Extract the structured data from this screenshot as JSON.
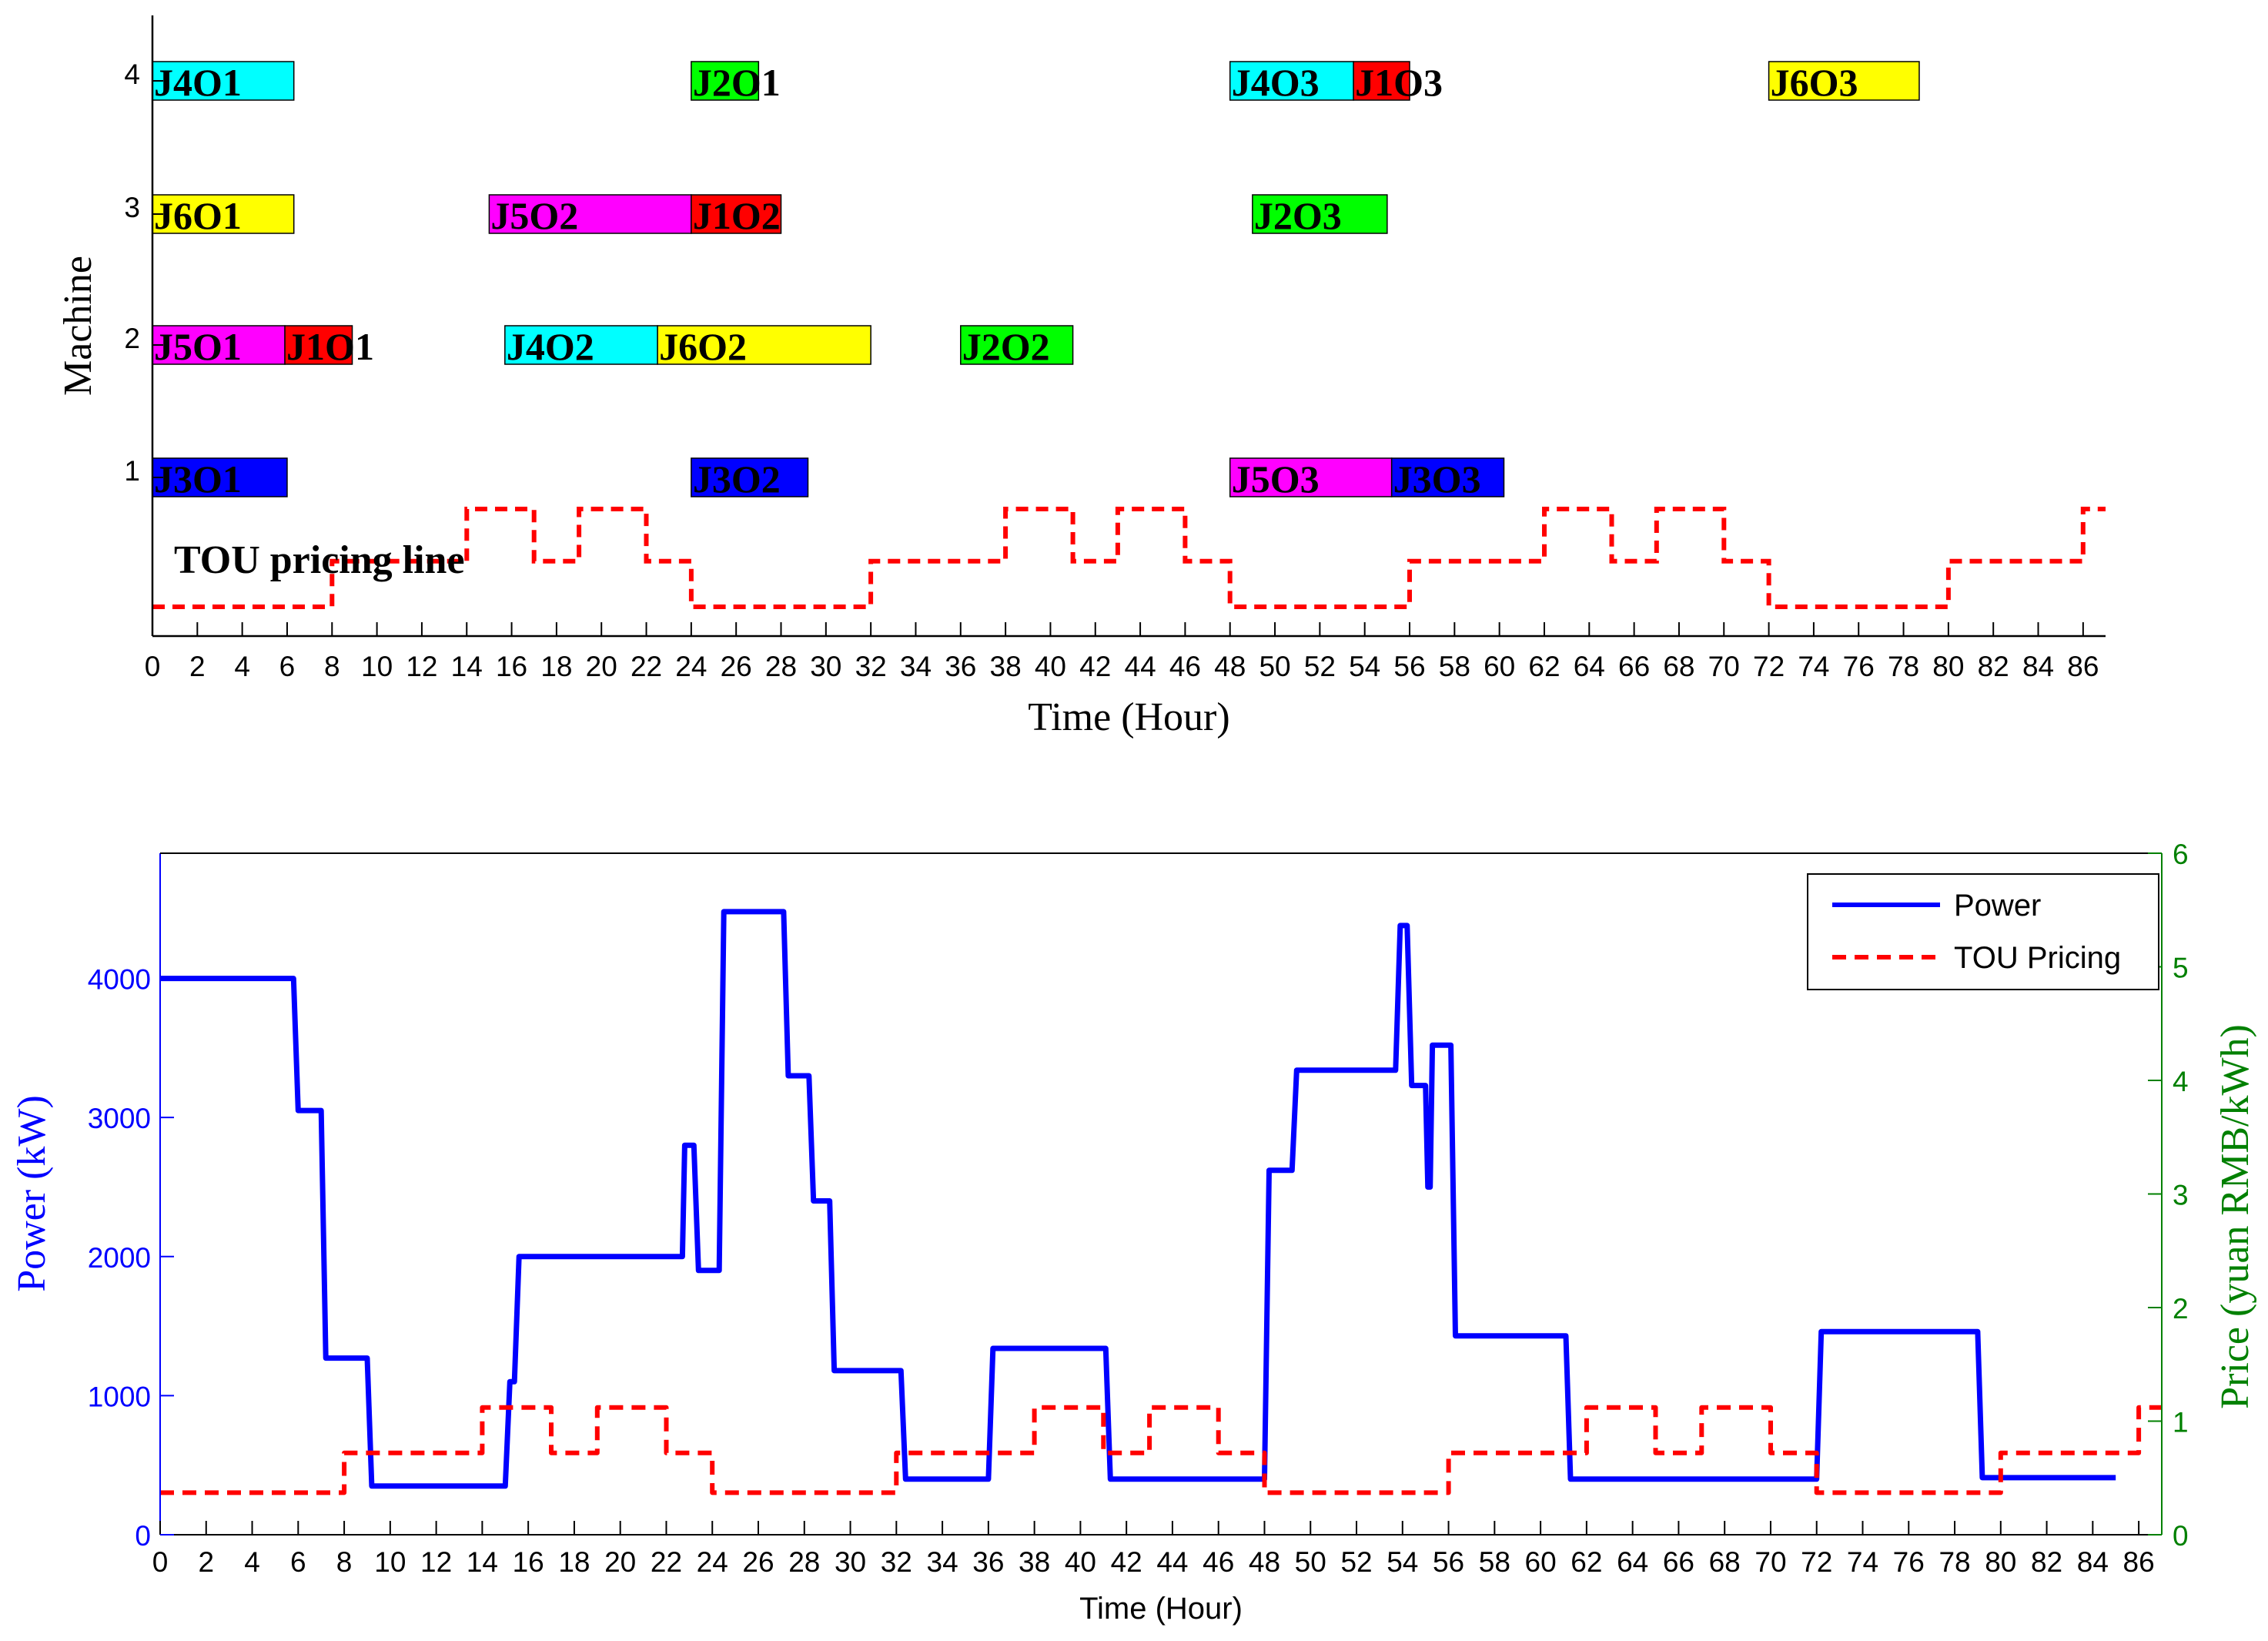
{
  "chart_data": [
    {
      "type": "gantt",
      "xlabel": "Time (Hour)",
      "ylabel": "Machine",
      "xlim": [
        0,
        87
      ],
      "xticks": [
        0,
        2,
        4,
        6,
        8,
        10,
        12,
        14,
        16,
        18,
        20,
        22,
        24,
        26,
        28,
        30,
        32,
        34,
        36,
        38,
        40,
        42,
        44,
        46,
        48,
        50,
        52,
        54,
        56,
        58,
        60,
        62,
        64,
        66,
        68,
        70,
        72,
        74,
        76,
        78,
        80,
        82,
        84,
        86
      ],
      "machines": [
        {
          "label": "1",
          "machine": 1
        },
        {
          "label": "2",
          "machine": 2
        },
        {
          "label": "3",
          "machine": 3
        },
        {
          "label": "4",
          "machine": 4
        }
      ],
      "job_colors": {
        "J1": "#ff0000",
        "J2": "#00ff00",
        "J3": "#0000ff",
        "J4": "#00ffff",
        "J5": "#ff00ff",
        "J6": "#ffff00"
      },
      "tasks": [
        {
          "label": "J3O1",
          "job": "J3",
          "machine": 1,
          "start": 0,
          "end": 6
        },
        {
          "label": "J3O2",
          "job": "J3",
          "machine": 1,
          "start": 24,
          "end": 29.2
        },
        {
          "label": "J5O3",
          "job": "J5",
          "machine": 1,
          "start": 48,
          "end": 55.2
        },
        {
          "label": "J3O3",
          "job": "J3",
          "machine": 1,
          "start": 55.2,
          "end": 60.2
        },
        {
          "label": "J5O1",
          "job": "J5",
          "machine": 2,
          "start": 0,
          "end": 5.9
        },
        {
          "label": "J1O1",
          "job": "J1",
          "machine": 2,
          "start": 5.9,
          "end": 8.9
        },
        {
          "label": "J4O2",
          "job": "J4",
          "machine": 2,
          "start": 15.7,
          "end": 22.5
        },
        {
          "label": "J6O2",
          "job": "J6",
          "machine": 2,
          "start": 22.5,
          "end": 32
        },
        {
          "label": "J2O2",
          "job": "J2",
          "machine": 2,
          "start": 36,
          "end": 41
        },
        {
          "label": "J6O1",
          "job": "J6",
          "machine": 3,
          "start": 0,
          "end": 6.3
        },
        {
          "label": "J5O2",
          "job": "J5",
          "machine": 3,
          "start": 15,
          "end": 24
        },
        {
          "label": "J1O2",
          "job": "J1",
          "machine": 3,
          "start": 24,
          "end": 28
        },
        {
          "label": "J2O3",
          "job": "J2",
          "machine": 3,
          "start": 49,
          "end": 55
        },
        {
          "label": "J4O1",
          "job": "J4",
          "machine": 4,
          "start": 0,
          "end": 6.3
        },
        {
          "label": "J2O1",
          "job": "J2",
          "machine": 4,
          "start": 24,
          "end": 27
        },
        {
          "label": "J4O3",
          "job": "J4",
          "machine": 4,
          "start": 48,
          "end": 53.5
        },
        {
          "label": "J1O3",
          "job": "J1",
          "machine": 4,
          "start": 53.5,
          "end": 56
        },
        {
          "label": "J6O3",
          "job": "J6",
          "machine": 4,
          "start": 72,
          "end": 78.7
        }
      ],
      "annotation": "TOU pricing line",
      "tou_line_color": "#ff0000"
    },
    {
      "type": "line",
      "xlabel": "Time (Hour)",
      "ylabel": "Power (kW)",
      "y2label": "Price (yuan RMB/kWh)",
      "xlim": [
        0,
        87
      ],
      "ylim": [
        0,
        4900
      ],
      "y2lim": [
        0,
        6
      ],
      "xticks": [
        0,
        2,
        4,
        6,
        8,
        10,
        12,
        14,
        16,
        18,
        20,
        22,
        24,
        26,
        28,
        30,
        32,
        34,
        36,
        38,
        40,
        42,
        44,
        46,
        48,
        50,
        52,
        54,
        56,
        58,
        60,
        62,
        64,
        66,
        68,
        70,
        72,
        74,
        76,
        78,
        80,
        82,
        84,
        86
      ],
      "yticks": [
        0,
        1000,
        2000,
        3000,
        4000
      ],
      "y2ticks": [
        0,
        1,
        2,
        3,
        4,
        5,
        6
      ],
      "legend": {
        "position": "top-right",
        "entries": [
          "Power",
          "TOU Pricing"
        ]
      },
      "series": [
        {
          "name": "Power",
          "axis": "left",
          "color": "#0000ff",
          "style": "solid",
          "x": [
            0,
            5.8,
            6,
            7,
            7.2,
            9,
            9.2,
            15,
            15.2,
            15.4,
            15.6,
            22.7,
            22.8,
            23.2,
            23.4,
            24.3,
            24.5,
            27.1,
            27.3,
            28.2,
            28.4,
            29.1,
            29.3,
            32.2,
            32.4,
            36,
            36.2,
            41.1,
            41.3,
            48,
            48.2,
            49.2,
            49.4,
            53.7,
            53.9,
            54.2,
            54.4,
            55,
            55.1,
            55.2,
            55.3,
            56.1,
            56.3,
            61.1,
            61.3,
            72,
            72.2,
            79,
            79.2,
            85
          ],
          "y": [
            4000,
            4000,
            3050,
            3050,
            1270,
            1270,
            350,
            350,
            1100,
            1100,
            2000,
            2000,
            2800,
            2800,
            1900,
            1900,
            4480,
            4480,
            3300,
            3300,
            2400,
            2400,
            1180,
            1180,
            400,
            400,
            1340,
            1340,
            400,
            400,
            2620,
            2620,
            3340,
            3340,
            4380,
            4380,
            3230,
            3230,
            2500,
            2500,
            3520,
            3520,
            1430,
            1430,
            400,
            400,
            1460,
            1460,
            410,
            410
          ]
        },
        {
          "name": "TOU Pricing",
          "axis": "right",
          "color": "#ff0000",
          "style": "dashed",
          "x": [
            0,
            8,
            8,
            14,
            14,
            17,
            17,
            19,
            19,
            22,
            22,
            24,
            24,
            32,
            32,
            38,
            38,
            41,
            41,
            43,
            43,
            46,
            46,
            48,
            48,
            56,
            56,
            62,
            62,
            65,
            65,
            67,
            67,
            70,
            70,
            72,
            72,
            80,
            80,
            86,
            86,
            87
          ],
          "y": [
            0.37,
            0.37,
            0.72,
            0.72,
            1.12,
            1.12,
            0.72,
            0.72,
            1.12,
            1.12,
            0.72,
            0.72,
            0.37,
            0.37,
            0.72,
            0.72,
            1.12,
            1.12,
            0.72,
            0.72,
            1.12,
            1.12,
            0.72,
            0.72,
            0.37,
            0.37,
            0.72,
            0.72,
            1.12,
            1.12,
            0.72,
            0.72,
            1.12,
            1.12,
            0.72,
            0.72,
            0.37,
            0.37,
            0.72,
            0.72,
            1.12,
            1.12
          ]
        }
      ],
      "axis_colors": {
        "left": "#0000ff",
        "right": "#008000"
      }
    }
  ]
}
